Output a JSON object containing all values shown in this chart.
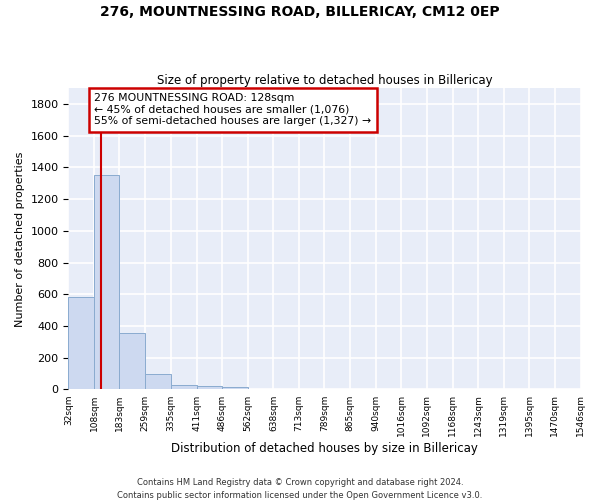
{
  "title1": "276, MOUNTNESSING ROAD, BILLERICAY, CM12 0EP",
  "title2": "Size of property relative to detached houses in Billericay",
  "xlabel": "Distribution of detached houses by size in Billericay",
  "ylabel": "Number of detached properties",
  "bin_edges": [
    32,
    108,
    183,
    259,
    335,
    411,
    486,
    562,
    638,
    713,
    789,
    865,
    940,
    1016,
    1092,
    1168,
    1243,
    1319,
    1395,
    1470,
    1546
  ],
  "bin_counts": [
    580,
    1355,
    355,
    95,
    30,
    20,
    15,
    0,
    0,
    0,
    0,
    0,
    0,
    0,
    0,
    0,
    0,
    0,
    0,
    0
  ],
  "bar_color": "#cdd9f0",
  "bar_edge_color": "#8aabcf",
  "bar_linewidth": 0.7,
  "background_color": "#e8edf8",
  "grid_color": "#ffffff",
  "property_size": 128,
  "red_line_color": "#cc0000",
  "annotation_line1": "276 MOUNTNESSING ROAD: 128sqm",
  "annotation_line2": "← 45% of detached houses are smaller (1,076)",
  "annotation_line3": "55% of semi-detached houses are larger (1,327) →",
  "annotation_box_color": "#ffffff",
  "annotation_box_edge": "#cc0000",
  "footnote1": "Contains HM Land Registry data © Crown copyright and database right 2024.",
  "footnote2": "Contains public sector information licensed under the Open Government Licence v3.0.",
  "ylim": [
    0,
    1900
  ],
  "yticks": [
    0,
    200,
    400,
    600,
    800,
    1000,
    1200,
    1400,
    1600,
    1800
  ]
}
